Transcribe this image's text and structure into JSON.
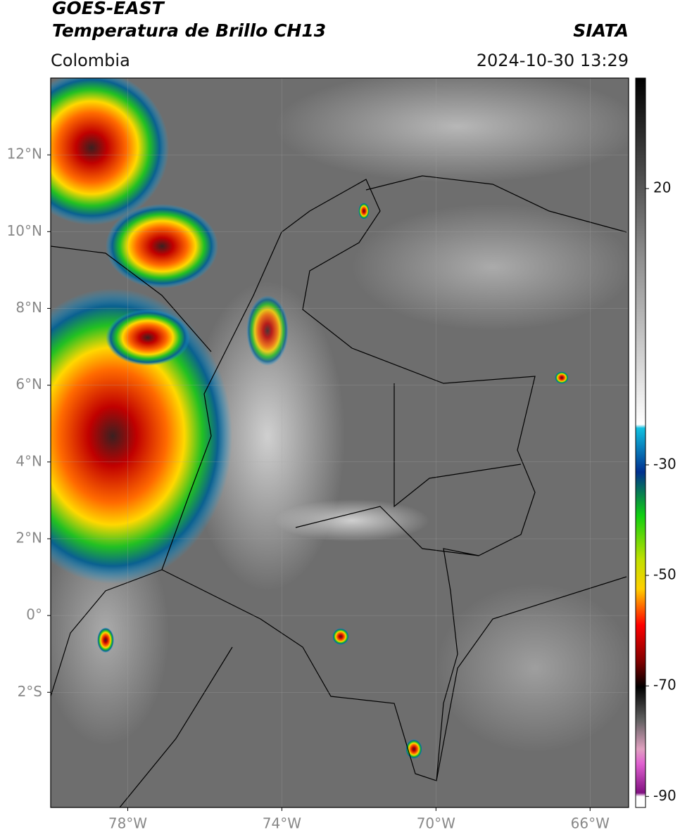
{
  "header": {
    "title": "GOES-EAST",
    "subtitle": "Temperatura de Brillo CH13",
    "source": "SIATA",
    "region": "Colombia",
    "timestamp": "2024-10-30 13:29"
  },
  "map": {
    "lon_range": [
      -80,
      -65
    ],
    "lat_range": [
      -5,
      14
    ],
    "lon_ticks": [
      {
        "value": -78,
        "label": "78°W"
      },
      {
        "value": -74,
        "label": "74°W"
      },
      {
        "value": -70,
        "label": "70°W"
      },
      {
        "value": -66,
        "label": "66°W"
      }
    ],
    "lat_ticks": [
      {
        "value": 12,
        "label": "12°N"
      },
      {
        "value": 10,
        "label": "10°N"
      },
      {
        "value": 8,
        "label": "8°N"
      },
      {
        "value": 6,
        "label": "6°N"
      },
      {
        "value": 4,
        "label": "4°N"
      },
      {
        "value": 2,
        "label": "2°N"
      },
      {
        "value": 0,
        "label": "0°"
      },
      {
        "value": -2,
        "label": "2°S"
      }
    ]
  },
  "colorbar": {
    "range": [
      -92,
      40
    ],
    "ticks": [
      20,
      -30,
      -50,
      -70,
      -90
    ]
  }
}
